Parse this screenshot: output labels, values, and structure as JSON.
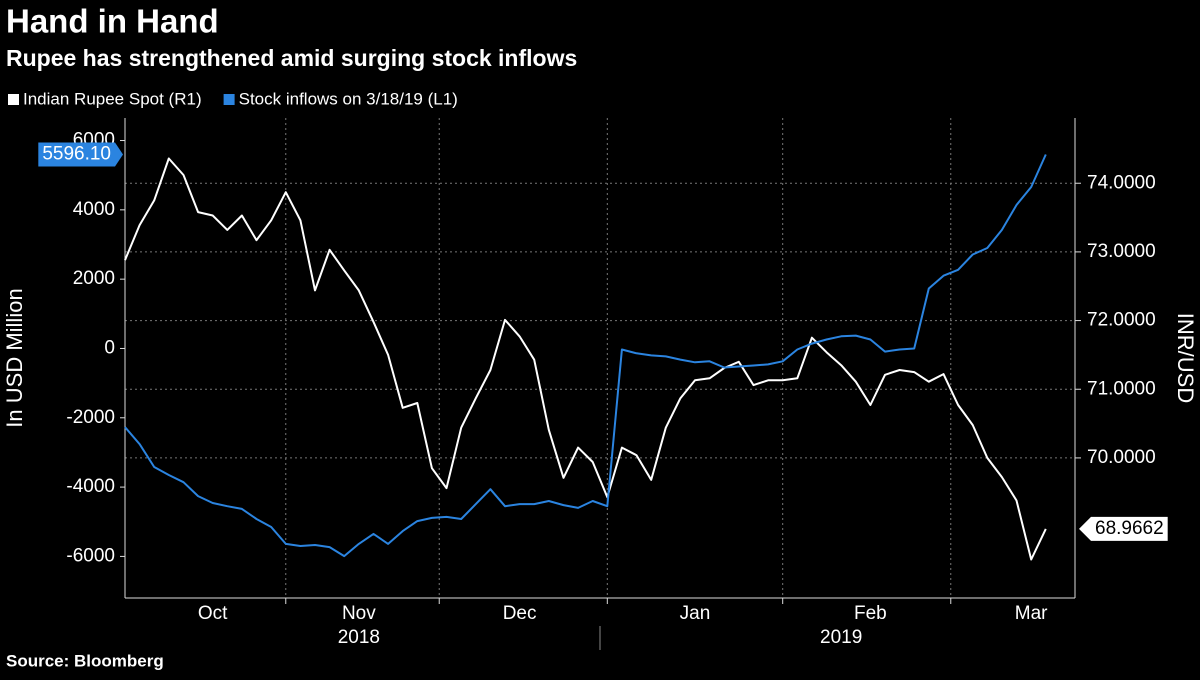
{
  "chart_data": {
    "type": "line",
    "title": "Hand in Hand",
    "subtitle": "Rupee has strengthened amid surging stock inflows",
    "source": "Source: Bloomberg",
    "ylabel": "In USD Million",
    "y2label": "INR/USD",
    "categories": [
      null,
      null,
      null,
      null,
      null,
      null,
      "Oct",
      null,
      null,
      null,
      null,
      null,
      null,
      null,
      null,
      null,
      "Nov",
      null,
      null,
      null,
      null,
      null,
      null,
      null,
      null,
      null,
      null,
      "Dec",
      null,
      null,
      null,
      null,
      null,
      null,
      null,
      null,
      null,
      null,
      null,
      "Jan",
      null,
      null,
      null,
      null,
      null,
      null,
      null,
      null,
      null,
      null,
      null,
      "Feb",
      null,
      null,
      null,
      null,
      null,
      null,
      null,
      null,
      null,
      null,
      "Mar",
      null
    ],
    "year_categories": [
      null,
      null,
      null,
      null,
      null,
      null,
      null,
      null,
      null,
      null,
      null,
      null,
      null,
      null,
      null,
      null,
      "2018",
      null,
      null,
      null,
      null,
      null,
      null,
      null,
      null,
      null,
      null,
      null,
      null,
      null,
      null,
      null,
      null,
      null,
      null,
      null,
      null,
      null,
      null,
      null,
      null,
      null,
      null,
      null,
      null,
      null,
      null,
      null,
      null,
      "2019",
      null,
      null,
      null,
      null,
      null,
      null,
      null,
      null,
      null,
      null,
      null,
      null,
      null,
      null
    ],
    "ylim": [
      -7200,
      6650
    ],
    "yticks": [
      6000,
      4000,
      2000,
      0,
      -2000,
      -4000,
      -6000
    ],
    "y2lim": [
      67.96,
      74.95
    ],
    "y2ticks": [
      {
        "value": 74,
        "label": "74.0000"
      },
      {
        "value": 73,
        "label": "73.0000"
      },
      {
        "value": 72,
        "label": "72.0000"
      },
      {
        "value": 71,
        "label": "71.0000"
      },
      {
        "value": 70,
        "label": "70.0000"
      }
    ],
    "grid": true,
    "series": [
      {
        "name": "Indian Rupee Spot (R1)",
        "color": "#ffffff",
        "axis": "y2",
        "end_label": "68.9662",
        "values": [
          72.88,
          73.39,
          73.75,
          74.36,
          74.12,
          73.58,
          73.53,
          73.32,
          73.53,
          73.17,
          73.46,
          73.87,
          73.46,
          72.44,
          73.03,
          72.73,
          72.44,
          71.98,
          71.5,
          70.73,
          70.8,
          69.85,
          69.56,
          70.44,
          70.87,
          71.28,
          72.01,
          71.77,
          71.43,
          70.41,
          69.71,
          70.15,
          69.94,
          69.43,
          70.15,
          70.04,
          69.68,
          70.44,
          70.87,
          71.13,
          71.16,
          71.31,
          71.4,
          71.06,
          71.13,
          71.13,
          71.16,
          71.75,
          71.54,
          71.35,
          71.11,
          70.77,
          71.21,
          71.28,
          71.25,
          71.11,
          71.22,
          70.77,
          70.48,
          70.0,
          69.72,
          69.38,
          68.52,
          68.9662
        ]
      },
      {
        "name": "Stock inflows on 3/18/19 (L1)",
        "color": "#2b84e0",
        "axis": "y",
        "end_label": "5596.10",
        "values": [
          -2270,
          -2760,
          -3420,
          -3650,
          -3860,
          -4260,
          -4460,
          -4550,
          -4630,
          -4920,
          -5150,
          -5640,
          -5700,
          -5670,
          -5730,
          -5990,
          -5640,
          -5350,
          -5640,
          -5270,
          -4980,
          -4890,
          -4860,
          -4920,
          -4490,
          -4060,
          -4550,
          -4490,
          -4490,
          -4400,
          -4520,
          -4600,
          -4400,
          -4550,
          -30,
          -140,
          -200,
          -230,
          -320,
          -400,
          -370,
          -550,
          -520,
          -490,
          -460,
          -370,
          -30,
          140,
          260,
          350,
          370,
          260,
          -90,
          -30,
          0,
          1730,
          2100,
          2270,
          2710,
          2900,
          3420,
          4140,
          4660,
          5596.1
        ]
      }
    ]
  }
}
